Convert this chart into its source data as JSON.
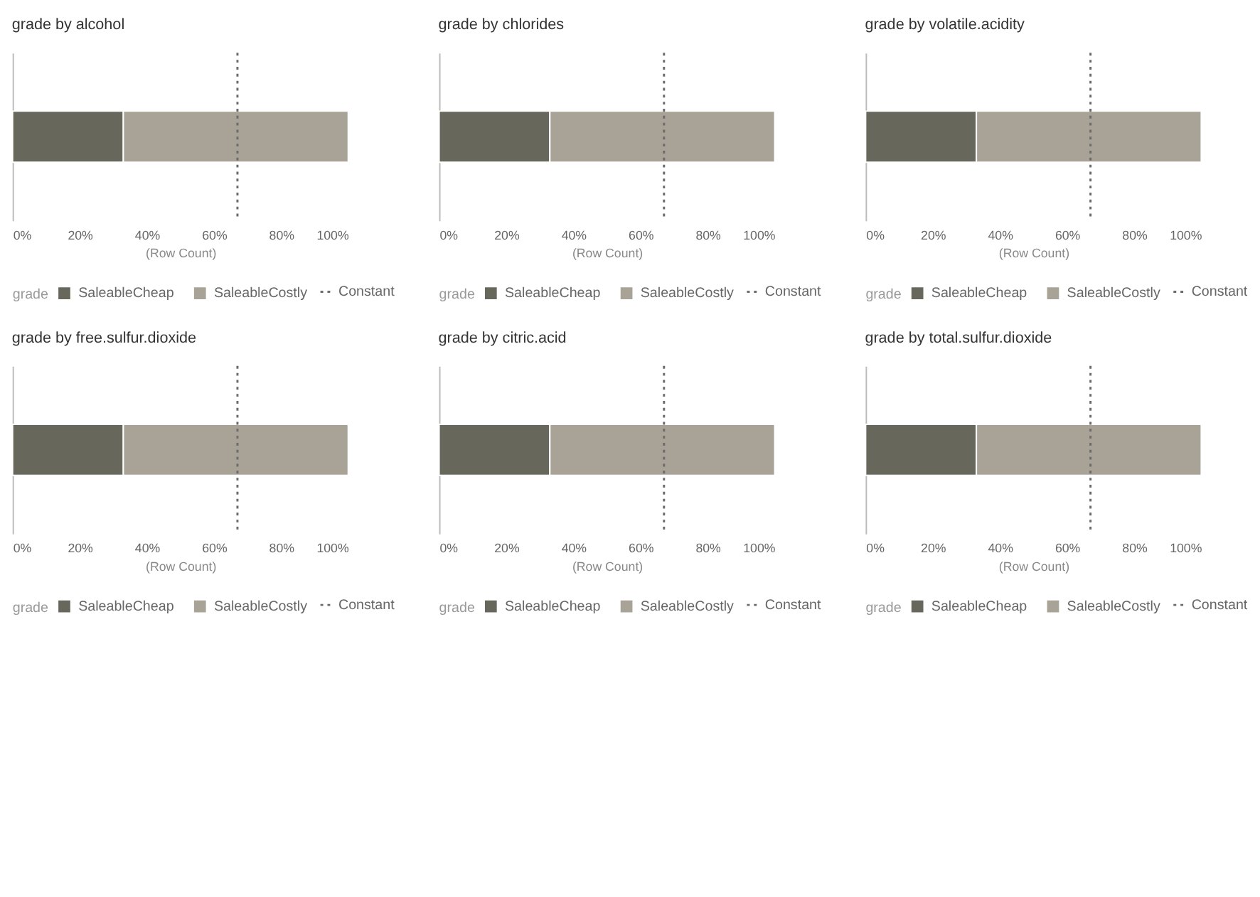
{
  "chart_data": [
    {
      "type": "bar",
      "title": "grade by alcohol",
      "orientation": "horizontal",
      "stacked": true,
      "categories": [
        null
      ],
      "xlabel": "(Row Count)",
      "legend_title": "grade",
      "legend": "bottom",
      "xlim": [
        0,
        100
      ],
      "xticks": [
        {
          "value": 0,
          "label": "0%"
        },
        {
          "value": 20,
          "label": "20%"
        },
        {
          "value": 40,
          "label": "40%"
        },
        {
          "value": 60,
          "label": "60%"
        },
        {
          "value": 80,
          "label": "80%"
        },
        {
          "value": 100,
          "label": "100%"
        }
      ],
      "series": [
        {
          "name": "SaleableCheap",
          "color": "#67685b",
          "values": [
            33
          ]
        },
        {
          "name": "SaleableCostly",
          "color": "#a8a396",
          "values": [
            67
          ]
        }
      ],
      "ref_lines": [
        {
          "axis": "x",
          "value": 67,
          "label": "Constant",
          "line_style": "dotted",
          "color": "#6b6b6b"
        }
      ]
    },
    {
      "type": "bar",
      "title": "grade by chlorides",
      "orientation": "horizontal",
      "stacked": true,
      "categories": [
        null
      ],
      "xlabel": "(Row Count)",
      "legend_title": "grade",
      "legend": "bottom",
      "xlim": [
        0,
        100
      ],
      "xticks": [
        {
          "value": 0,
          "label": "0%"
        },
        {
          "value": 20,
          "label": "20%"
        },
        {
          "value": 40,
          "label": "40%"
        },
        {
          "value": 60,
          "label": "60%"
        },
        {
          "value": 80,
          "label": "80%"
        },
        {
          "value": 100,
          "label": "100%"
        }
      ],
      "series": [
        {
          "name": "SaleableCheap",
          "color": "#67685b",
          "values": [
            33
          ]
        },
        {
          "name": "SaleableCostly",
          "color": "#a8a396",
          "values": [
            67
          ]
        }
      ],
      "ref_lines": [
        {
          "axis": "x",
          "value": 67,
          "label": "Constant",
          "line_style": "dotted",
          "color": "#6b6b6b"
        }
      ]
    },
    {
      "type": "bar",
      "title": "grade by volatile.acidity",
      "orientation": "horizontal",
      "stacked": true,
      "categories": [
        null
      ],
      "xlabel": "(Row Count)",
      "legend_title": "grade",
      "legend": "bottom",
      "xlim": [
        0,
        100
      ],
      "xticks": [
        {
          "value": 0,
          "label": "0%"
        },
        {
          "value": 20,
          "label": "20%"
        },
        {
          "value": 40,
          "label": "40%"
        },
        {
          "value": 60,
          "label": "60%"
        },
        {
          "value": 80,
          "label": "80%"
        },
        {
          "value": 100,
          "label": "100%"
        }
      ],
      "series": [
        {
          "name": "SaleableCheap",
          "color": "#67685b",
          "values": [
            33
          ]
        },
        {
          "name": "SaleableCostly",
          "color": "#a8a396",
          "values": [
            67
          ]
        }
      ],
      "ref_lines": [
        {
          "axis": "x",
          "value": 67,
          "label": "Constant",
          "line_style": "dotted",
          "color": "#6b6b6b"
        }
      ]
    },
    {
      "type": "bar",
      "title": "grade by free.sulfur.dioxide",
      "orientation": "horizontal",
      "stacked": true,
      "categories": [
        null
      ],
      "xlabel": "(Row Count)",
      "legend_title": "grade",
      "legend": "bottom",
      "xlim": [
        0,
        100
      ],
      "xticks": [
        {
          "value": 0,
          "label": "0%"
        },
        {
          "value": 20,
          "label": "20%"
        },
        {
          "value": 40,
          "label": "40%"
        },
        {
          "value": 60,
          "label": "60%"
        },
        {
          "value": 80,
          "label": "80%"
        },
        {
          "value": 100,
          "label": "100%"
        }
      ],
      "series": [
        {
          "name": "SaleableCheap",
          "color": "#67685b",
          "values": [
            33
          ]
        },
        {
          "name": "SaleableCostly",
          "color": "#a8a396",
          "values": [
            67
          ]
        }
      ],
      "ref_lines": [
        {
          "axis": "x",
          "value": 67,
          "label": "Constant",
          "line_style": "dotted",
          "color": "#6b6b6b"
        }
      ]
    },
    {
      "type": "bar",
      "title": "grade by citric.acid",
      "orientation": "horizontal",
      "stacked": true,
      "categories": [
        null
      ],
      "xlabel": "(Row Count)",
      "legend_title": "grade",
      "legend": "bottom",
      "xlim": [
        0,
        100
      ],
      "xticks": [
        {
          "value": 0,
          "label": "0%"
        },
        {
          "value": 20,
          "label": "20%"
        },
        {
          "value": 40,
          "label": "40%"
        },
        {
          "value": 60,
          "label": "60%"
        },
        {
          "value": 80,
          "label": "80%"
        },
        {
          "value": 100,
          "label": "100%"
        }
      ],
      "series": [
        {
          "name": "SaleableCheap",
          "color": "#67685b",
          "values": [
            33
          ]
        },
        {
          "name": "SaleableCostly",
          "color": "#a8a396",
          "values": [
            67
          ]
        }
      ],
      "ref_lines": [
        {
          "axis": "x",
          "value": 67,
          "label": "Constant",
          "line_style": "dotted",
          "color": "#6b6b6b"
        }
      ]
    },
    {
      "type": "bar",
      "title": "grade by total.sulfur.dioxide",
      "orientation": "horizontal",
      "stacked": true,
      "categories": [
        null
      ],
      "xlabel": "(Row Count)",
      "legend_title": "grade",
      "legend": "bottom",
      "xlim": [
        0,
        100
      ],
      "xticks": [
        {
          "value": 0,
          "label": "0%"
        },
        {
          "value": 20,
          "label": "20%"
        },
        {
          "value": 40,
          "label": "40%"
        },
        {
          "value": 60,
          "label": "60%"
        },
        {
          "value": 80,
          "label": "80%"
        },
        {
          "value": 100,
          "label": "100%"
        }
      ],
      "series": [
        {
          "name": "SaleableCheap",
          "color": "#67685b",
          "values": [
            33
          ]
        },
        {
          "name": "SaleableCostly",
          "color": "#a8a396",
          "values": [
            67
          ]
        }
      ],
      "ref_lines": [
        {
          "axis": "x",
          "value": 67,
          "label": "Constant",
          "line_style": "dotted",
          "color": "#6b6b6b"
        }
      ]
    }
  ]
}
